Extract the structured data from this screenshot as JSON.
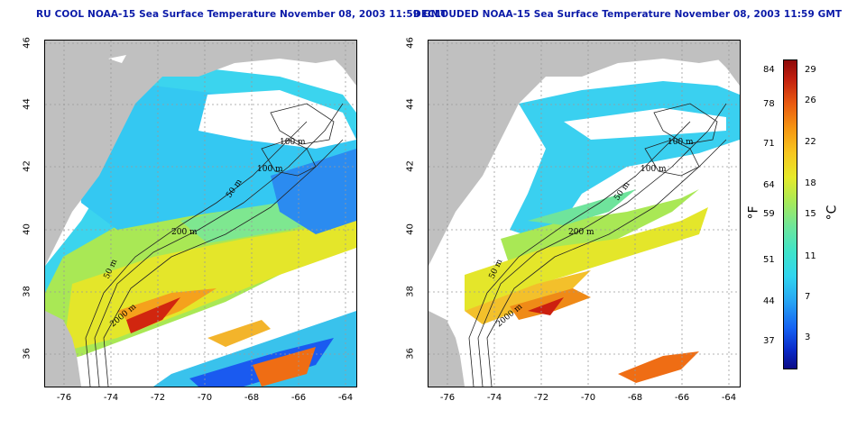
{
  "titles": {
    "left": "RU COOL NOAA-15 Sea Surface Temperature November 08, 2003 11:59 GMT",
    "right": "DECLOUDED NOAA-15 Sea Surface Temperature November 08, 2003 11:59 GMT"
  },
  "axes": {
    "x_ticks": [
      "-76",
      "-74",
      "-72",
      "-70",
      "-68",
      "-66",
      "-64"
    ],
    "y_ticks": [
      "46",
      "44",
      "42",
      "40",
      "38",
      "36"
    ]
  },
  "contour_labels": {
    "left": [
      "100 m",
      "100 m",
      "50 m",
      "200 m",
      "50 m",
      "2000 m"
    ],
    "right": [
      "100 m",
      "100 m",
      "50 m",
      "200 m",
      "50 m",
      "2000 m"
    ]
  },
  "colorbar": {
    "fahrenheit": [
      "84",
      "78",
      "71",
      "64",
      "59",
      "51",
      "44",
      "37"
    ],
    "celsius": [
      "29",
      "26",
      "22",
      "18",
      "15",
      "11",
      "7",
      "3"
    ],
    "unit_f": "°F",
    "unit_c": "°C"
  },
  "colors": {
    "land": "#c0c0c0",
    "title": "#0b1aa8",
    "grid": "#9a9a9a"
  }
}
